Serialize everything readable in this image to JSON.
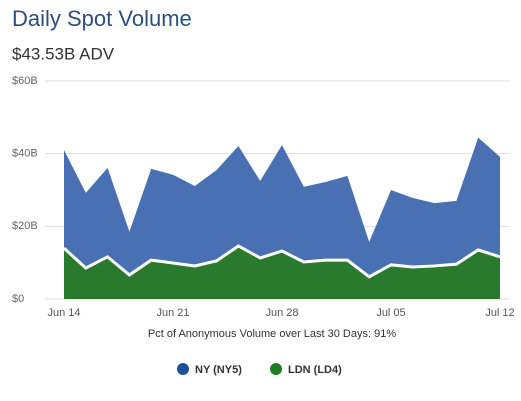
{
  "chart_data": {
    "type": "stacked_area",
    "title": "Daily Spot Volume",
    "subtitle": "$43.53B ADV",
    "note": "Pct of Anonymous Volume over Last 30 Days: 91%",
    "categories": [
      "Jun 14",
      null,
      null,
      null,
      null,
      "Jun 21",
      null,
      null,
      null,
      null,
      "Jun 28",
      null,
      null,
      null,
      null,
      "Jul 05",
      null,
      null,
      null,
      null,
      "Jul 12"
    ],
    "series": [
      {
        "name": "NY (NY5)",
        "color": "#4a70b4",
        "legend_color": "#1f4e9c",
        "values": [
          27.0,
          20.7,
          24.5,
          11.9,
          25.1,
          24.3,
          22.0,
          25.0,
          27.5,
          21.2,
          29.2,
          20.7,
          21.5,
          23.2,
          9.6,
          20.6,
          19.0,
          17.3,
          17.4,
          30.9,
          27.5
        ]
      },
      {
        "name": "LDN (LD4)",
        "color": "#2a7a2e",
        "legend_color": "#1e7d1e",
        "values": [
          14.0,
          8.5,
          11.6,
          6.6,
          10.7,
          9.9,
          9.1,
          10.5,
          14.6,
          11.3,
          13.2,
          10.2,
          10.7,
          10.7,
          6.1,
          9.4,
          8.8,
          9.1,
          9.6,
          13.5,
          11.6
        ]
      }
    ],
    "ylim": [
      0,
      60
    ],
    "yticks": [
      {
        "value": 0,
        "label": "$0"
      },
      {
        "value": 20,
        "label": "$20B"
      },
      {
        "value": 40,
        "label": "$40B"
      },
      {
        "value": 60,
        "label": "$60B"
      }
    ],
    "grid": true,
    "legend": "bottom"
  }
}
